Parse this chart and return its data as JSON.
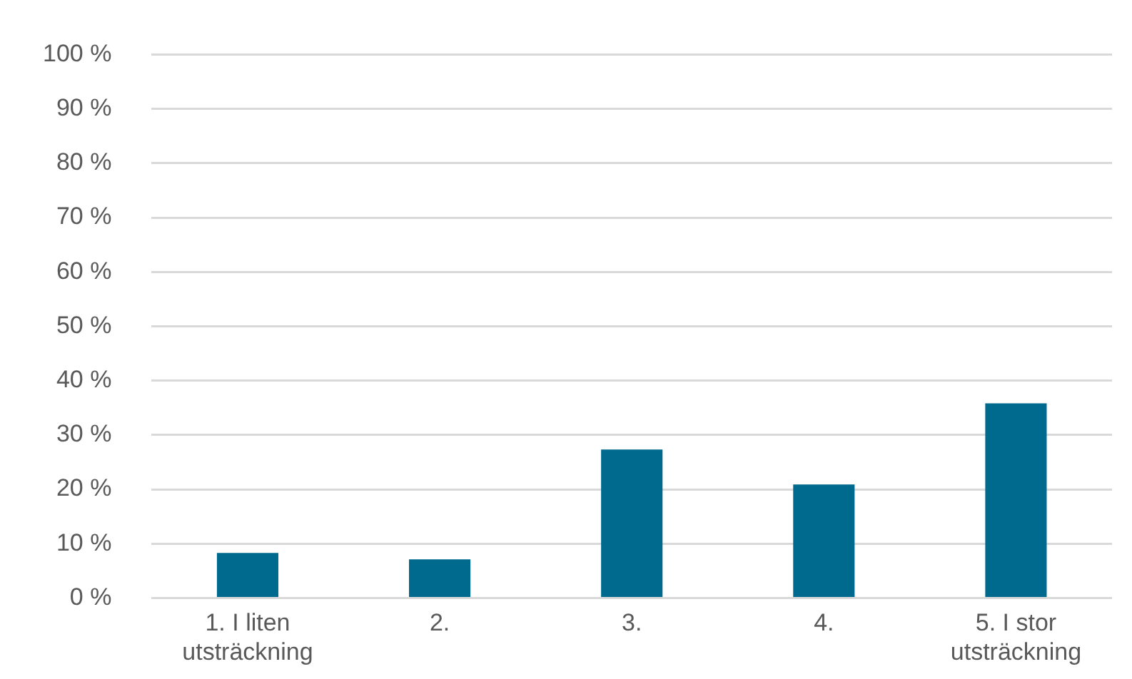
{
  "chart_data": {
    "type": "bar",
    "categories": [
      "1. I liten utsträckning",
      "2.",
      "3.",
      "4.",
      "5. I stor utsträckning"
    ],
    "values": [
      8.3,
      7.1,
      27.3,
      20.9,
      35.8
    ],
    "color": "#006a8e",
    "ylim": [
      0,
      100
    ],
    "yticks": [
      {
        "value": 0,
        "label": "0 %"
      },
      {
        "value": 10,
        "label": "10 %"
      },
      {
        "value": 20,
        "label": "20 %"
      },
      {
        "value": 30,
        "label": "30 %"
      },
      {
        "value": 40,
        "label": "40 %"
      },
      {
        "value": 50,
        "label": "50 %"
      },
      {
        "value": 60,
        "label": "60 %"
      },
      {
        "value": 70,
        "label": "70 %"
      },
      {
        "value": 80,
        "label": "80 %"
      },
      {
        "value": 90,
        "label": "90 %"
      },
      {
        "value": 100,
        "label": "100 %"
      }
    ],
    "grid": "y",
    "legend": false
  }
}
